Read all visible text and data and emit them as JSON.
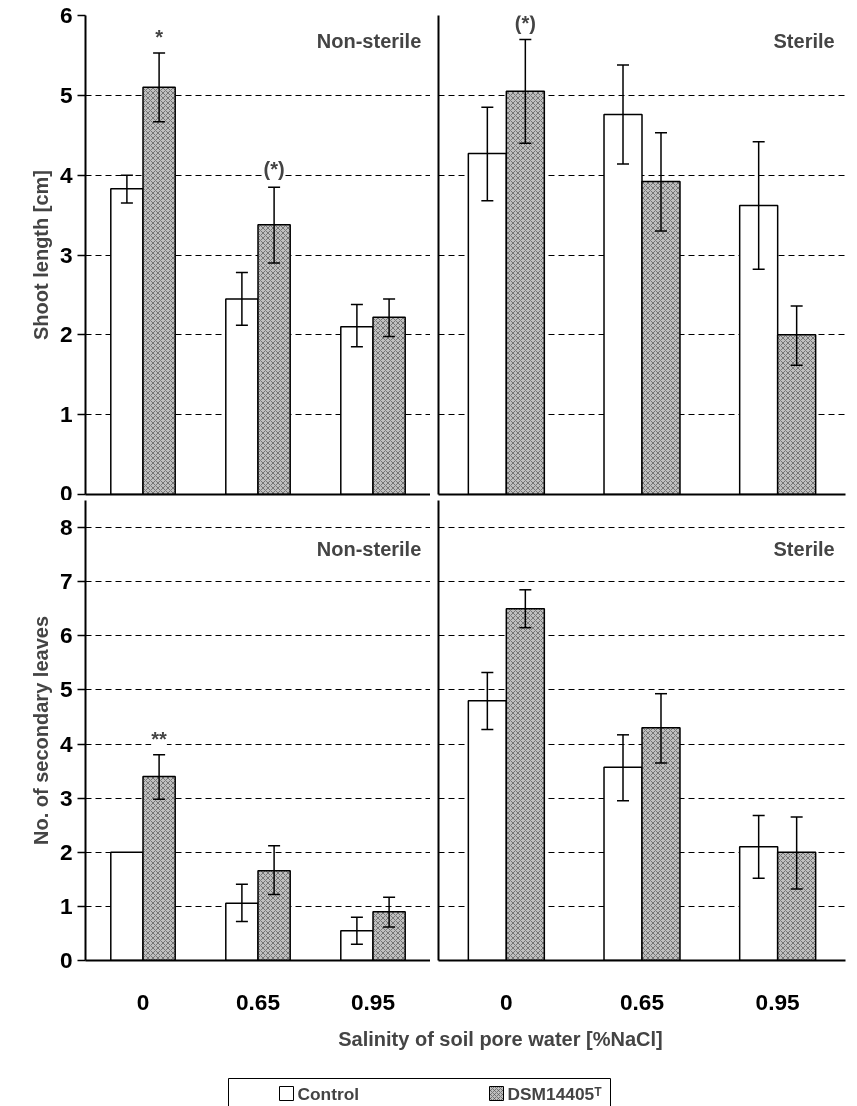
{
  "chart_data": [
    {
      "type": "bar",
      "title": "Non-sterile",
      "ylabel": "Shoot length [cm]",
      "categories": [
        "0",
        "0.65",
        "0.95"
      ],
      "ylim": [
        0,
        6
      ],
      "yticks": [
        0,
        1,
        2,
        3,
        4,
        5,
        6
      ],
      "grid": "y",
      "tick_labels": "y",
      "series": [
        {
          "color": "#ffffff",
          "values": [
            3.83,
            2.45,
            2.1
          ],
          "errors": [
            [
              3.65,
              4.0
            ],
            [
              2.12,
              2.78
            ],
            [
              1.85,
              2.38
            ]
          ]
        },
        {
          "color": "#bfbfbf",
          "values": [
            5.1,
            3.38,
            2.22
          ],
          "errors": [
            [
              4.67,
              5.53
            ],
            [
              2.9,
              3.85
            ],
            [
              1.98,
              2.45
            ]
          ]
        }
      ],
      "annotations": [
        "*",
        "(*)"
      ]
    },
    {
      "type": "bar",
      "title": "Sterile",
      "categories": [
        "0",
        "0.65",
        "0.95"
      ],
      "ylim": [
        0,
        6
      ],
      "yticks": [
        0,
        1,
        2,
        3,
        4,
        5,
        6
      ],
      "grid": "y",
      "tick_labels": false,
      "series": [
        {
          "color": "#ffffff",
          "values": [
            4.27,
            4.76,
            3.62
          ],
          "errors": [
            [
              3.68,
              4.85
            ],
            [
              4.14,
              5.38
            ],
            [
              2.82,
              4.42
            ]
          ]
        },
        {
          "color": "#bfbfbf",
          "values": [
            5.05,
            3.92,
            2.0
          ],
          "errors": [
            [
              4.4,
              5.7
            ],
            [
              3.3,
              4.53
            ],
            [
              1.62,
              2.36
            ]
          ]
        }
      ],
      "annotations": [
        "(*)"
      ]
    },
    {
      "type": "bar",
      "title": "Non-sterile",
      "ylabel": "No. of secondary leaves",
      "xlabel": "Salinity of soil pore water [%NaCl]",
      "categories": [
        "0",
        "0.65",
        "0.95"
      ],
      "ylim": [
        0,
        8.5
      ],
      "yticks": [
        0,
        1,
        2,
        3,
        4,
        5,
        6,
        7,
        8
      ],
      "grid": "y",
      "legend": "bottom",
      "series": [
        {
          "name": "Control",
          "color": "#ffffff",
          "values": [
            2.0,
            1.06,
            0.55
          ],
          "errors": [
            null,
            [
              0.72,
              1.41
            ],
            [
              0.3,
              0.8
            ]
          ]
        },
        {
          "name": "DSM14405ᵀ",
          "color": "#bfbfbf",
          "values": [
            3.4,
            1.66,
            0.9
          ],
          "errors": [
            [
              2.98,
              3.8
            ],
            [
              1.22,
              2.12
            ],
            [
              0.62,
              1.17
            ]
          ]
        }
      ],
      "annotations": [
        "**"
      ]
    },
    {
      "type": "bar",
      "title": "Sterile",
      "categories": [
        "0",
        "0.65",
        "0.95"
      ],
      "ylim": [
        0,
        8.5
      ],
      "yticks": [
        0,
        1,
        2,
        3,
        4,
        5,
        6,
        7,
        8
      ],
      "grid": "y",
      "tick_labels": "x",
      "series": [
        {
          "color": "#ffffff",
          "values": [
            4.8,
            3.57,
            2.1
          ],
          "errors": [
            [
              4.27,
              5.32
            ],
            [
              2.95,
              4.17
            ],
            [
              1.52,
              2.68
            ]
          ]
        },
        {
          "color": "#bfbfbf",
          "values": [
            6.5,
            4.3,
            2.0
          ],
          "errors": [
            [
              6.15,
              6.85
            ],
            [
              3.65,
              4.93
            ],
            [
              1.32,
              2.65
            ]
          ]
        }
      ]
    }
  ]
}
